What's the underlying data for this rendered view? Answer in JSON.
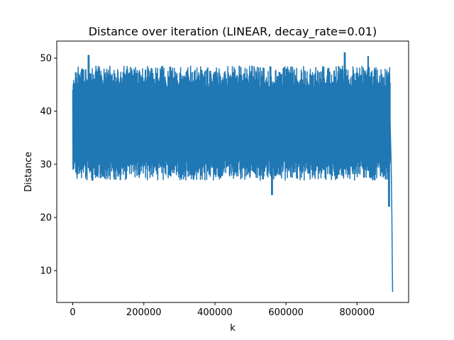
{
  "chart_data": {
    "type": "line",
    "title": "Distance over iteration (LINEAR, decay_rate=0.01)",
    "xlabel": "k",
    "ylabel": "Distance",
    "xlim": [
      -45000,
      945000
    ],
    "ylim": [
      4,
      53.2
    ],
    "x_ticks": [
      0,
      200000,
      400000,
      600000,
      800000
    ],
    "x_tick_labels": [
      "0",
      "200000",
      "400000",
      "600000",
      "800000"
    ],
    "y_ticks": [
      10,
      20,
      30,
      40,
      50
    ],
    "y_tick_labels": [
      "10",
      "20",
      "30",
      "40",
      "50"
    ],
    "grid": false,
    "legend": "none",
    "color": "#1f77b4",
    "series": [
      {
        "k_start": 0,
        "k_end": 900000,
        "plateau_k_end": 893000,
        "band_upper_typical": [
          44.5,
          48.5
        ],
        "band_lower_typical": [
          27,
          31
        ],
        "upper_spikes": [
          [
            45000,
            50.5
          ],
          [
            765000,
            51
          ],
          [
            830000,
            50.3
          ]
        ],
        "lower_spikes": [
          [
            560000,
            24.3
          ],
          [
            890000,
            22.1
          ]
        ],
        "initial_range": [
          29,
          46
        ],
        "final_drop": [
          [
            893000,
            38
          ],
          [
            896000,
            30
          ],
          [
            898000,
            20
          ],
          [
            899000,
            12
          ],
          [
            900000,
            6
          ]
        ]
      }
    ]
  }
}
